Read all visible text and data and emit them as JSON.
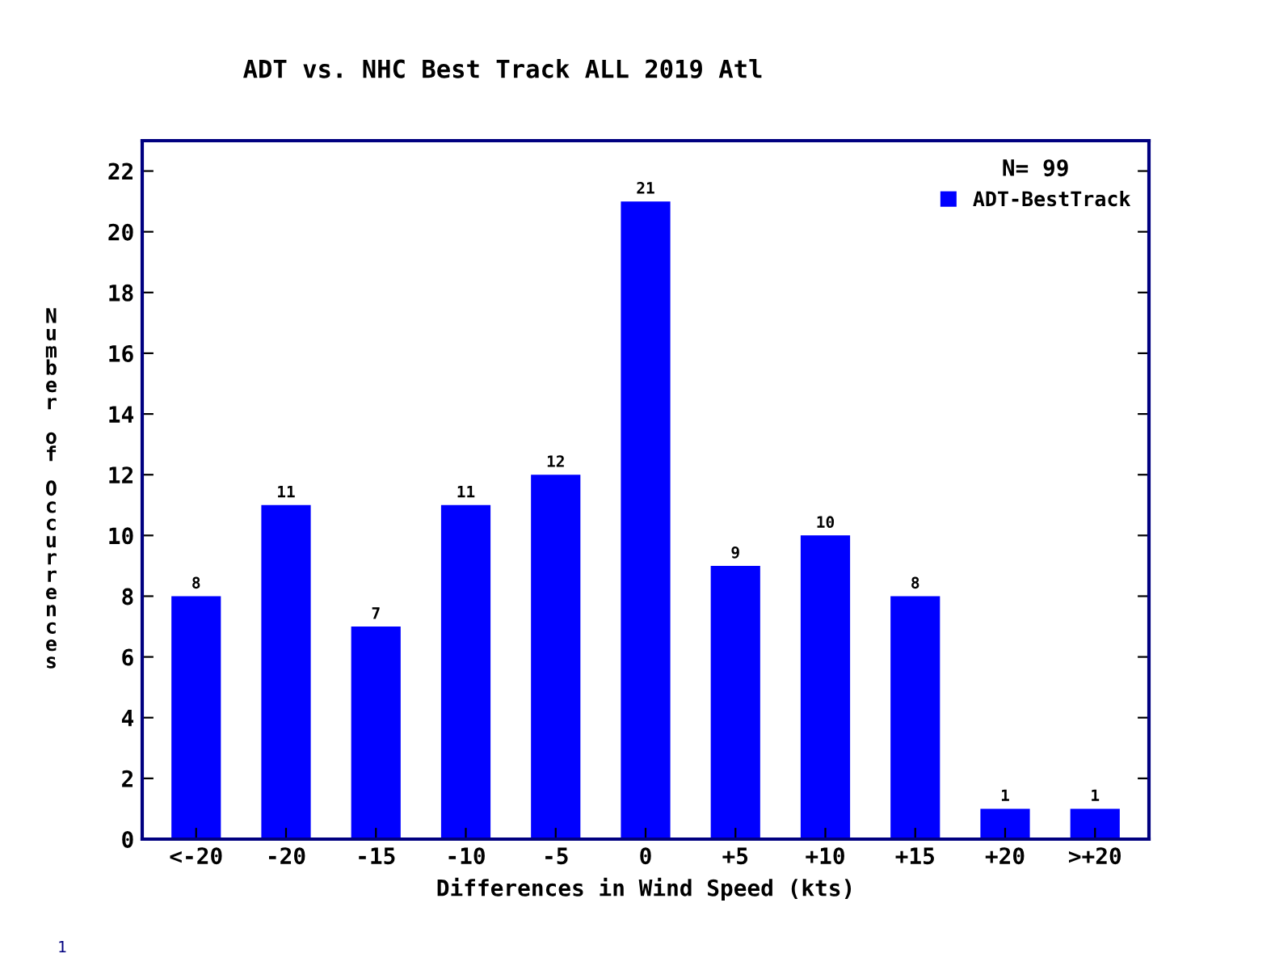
{
  "chart_data": {
    "type": "bar",
    "title": "ADT vs. NHC Best Track ALL 2019 Atl",
    "xlabel": "Differences in Wind Speed (kts)",
    "ylabel": "Number of Occurrences",
    "categories": [
      "<-20",
      "-20",
      "-15",
      "-10",
      "-5",
      "0",
      "+5",
      "+10",
      "+15",
      "+20",
      ">+20"
    ],
    "series": [
      {
        "name": "ADT-BestTrack",
        "color": "#0000ff",
        "values": [
          8,
          11,
          7,
          11,
          12,
          21,
          9,
          10,
          8,
          1,
          1
        ]
      }
    ],
    "legend_title": "N= 99",
    "legend": "top right",
    "ylim": [
      0,
      23
    ],
    "yticks": [
      0,
      2,
      4,
      6,
      8,
      10,
      12,
      14,
      16,
      18,
      20,
      22
    ],
    "data_labels": true,
    "grid": false,
    "annotations": [
      "1"
    ]
  }
}
